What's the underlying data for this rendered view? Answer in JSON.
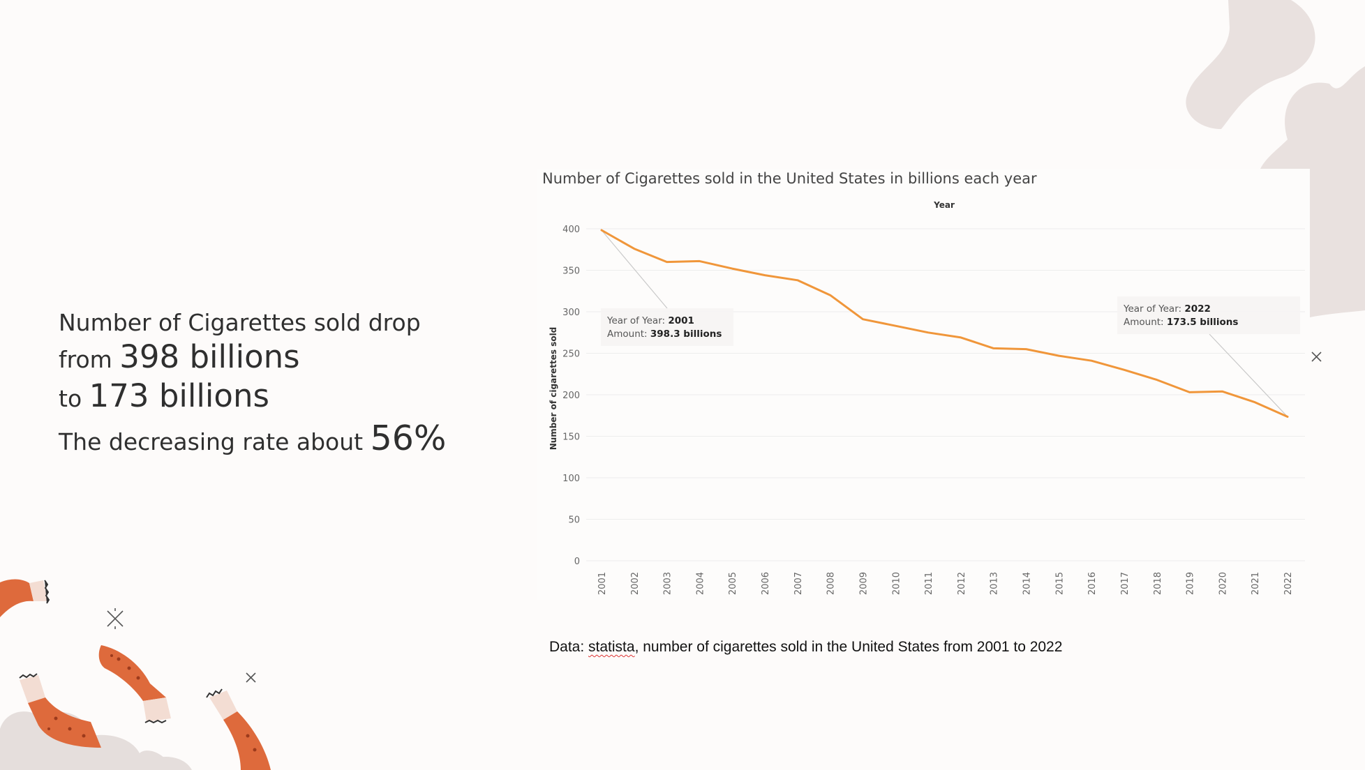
{
  "headline": {
    "line1": "Number of Cigarettes sold drop",
    "line2_prefix": "from",
    "line2_value": "398 billions",
    "line3_prefix": "to",
    "line3_value": "173 billions",
    "line4_prefix": "The decreasing rate about",
    "line4_value": "56%"
  },
  "source": {
    "prefix": "Data: ",
    "name": "statista",
    "rest": ", number of cigarettes sold in the United States from 2001 to 2022"
  },
  "colors": {
    "line": "#f0963a",
    "cigarette": "#de6a3c",
    "blob": "#e9e1df",
    "grid": "#ededed"
  },
  "chart_data": {
    "type": "line",
    "title": "Number of Cigarettes sold in the United States in billions each year",
    "xlabel": "Year",
    "ylabel": "Number of cigarettes sold",
    "ylim": [
      0,
      400
    ],
    "yticks": [
      0,
      50,
      100,
      150,
      200,
      250,
      300,
      350,
      400
    ],
    "x": [
      "2001",
      "2002",
      "2003",
      "2004",
      "2005",
      "2006",
      "2007",
      "2008",
      "2009",
      "2010",
      "2011",
      "2012",
      "2013",
      "2014",
      "2015",
      "2016",
      "2017",
      "2018",
      "2019",
      "2020",
      "2021",
      "2022"
    ],
    "series": [
      {
        "values": [
          398.3,
          376,
          360,
          361,
          352,
          344,
          338,
          320,
          291,
          283,
          275,
          269,
          256,
          255,
          247,
          241,
          230,
          218,
          203,
          204,
          191,
          173.5
        ]
      }
    ],
    "grid": true,
    "x_label_position": "top",
    "annotations": [
      {
        "year": "2001",
        "value": 398.3,
        "label_year": "Year of Year:",
        "year_text": "2001",
        "label_amount": "Amount:",
        "amount_text": "398.3 billions"
      },
      {
        "year": "2022",
        "value": 173.5,
        "label_year": "Year of Year:",
        "year_text": "2022",
        "label_amount": "Amount:",
        "amount_text": "173.5 billions"
      }
    ]
  }
}
